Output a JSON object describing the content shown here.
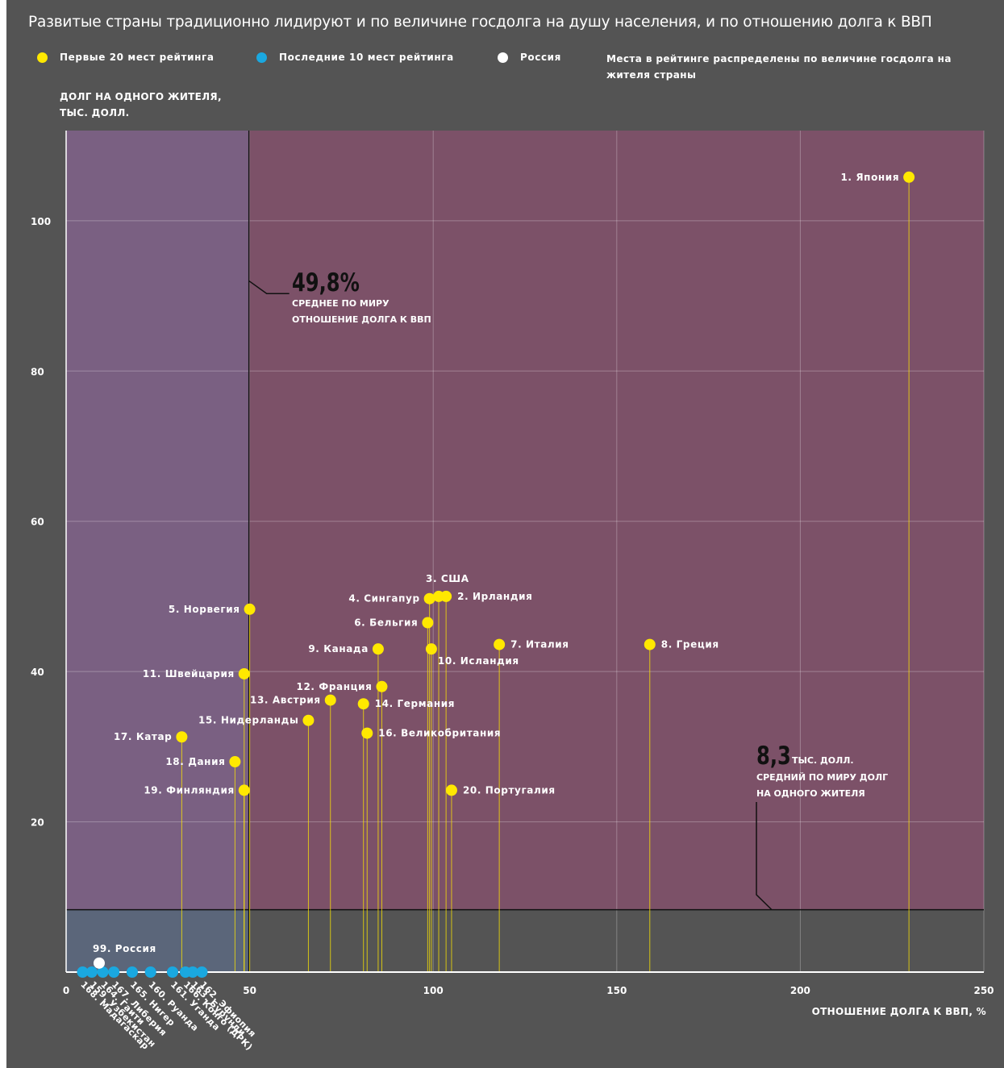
{
  "title": "Развитые страны традиционно лидируют и по величине госдолга на душу населения, и по отношению долга к ВВП",
  "legend": {
    "top20": "Первые 20 мест рейтинга",
    "bottom10": "Последние 10 мест рейтинга",
    "russia": "Россия",
    "note": "Места в рейтинге распределены по величине госдолга на жителя страны"
  },
  "colors": {
    "top20": "#ffe800",
    "bottom10": "#1aa8e0",
    "russia": "#ffffff",
    "frame": "#545454",
    "region_upper_right": "#7c5168",
    "region_upper_left": "#7a6082",
    "region_lower_left": "#5b667a",
    "region_lower_right": "#545454"
  },
  "chart_data": {
    "type": "scatter",
    "xlabel": "ОТНОШЕНИЕ ДОЛГА К ВВП, %",
    "ylabel": "ДОЛГ НА ОДНОГО ЖИТЕЛЯ, ТЫС. ДОЛЛ.",
    "xlim": [
      0,
      250
    ],
    "ylim": [
      0,
      112
    ],
    "xticks": [
      0,
      50,
      100,
      150,
      200,
      250
    ],
    "yticks": [
      20,
      40,
      60,
      80,
      100
    ],
    "grid": true,
    "stems": true,
    "reference_lines": {
      "world_avg_debt_to_gdp": {
        "value": 49.8,
        "label_value": "49,8%",
        "label_text": "СРЕДНЕЕ ПО МИРУ ОТНОШЕНИЕ ДОЛГА К ВВП"
      },
      "world_avg_debt_per_capita": {
        "value": 8.3,
        "label_value": "8,3",
        "label_unit": "ТЫС. ДОЛЛ.",
        "label_text": "СРЕДНИЙ ПО МИРУ ДОЛГ НА ОДНОГО ЖИТЕЛЯ"
      }
    },
    "series": [
      {
        "name": "Первые 20 мест рейтинга",
        "points": [
          {
            "label": "1. Япония",
            "x": 229.6,
            "y": 105.8
          },
          {
            "label": "2. Ирландия",
            "x": 103.5,
            "y": 50.0
          },
          {
            "label": "3. США",
            "x": 101.5,
            "y": 50.0
          },
          {
            "label": "4. Сингапур",
            "x": 99.0,
            "y": 49.7
          },
          {
            "label": "5. Норвегия",
            "x": 50.0,
            "y": 48.3
          },
          {
            "label": "6. Бельгия",
            "x": 98.5,
            "y": 46.5
          },
          {
            "label": "7. Италия",
            "x": 118.0,
            "y": 43.6
          },
          {
            "label": "8. Греция",
            "x": 159.0,
            "y": 43.6
          },
          {
            "label": "9. Канада",
            "x": 85.0,
            "y": 43.0
          },
          {
            "label": "10. Исландия",
            "x": 99.5,
            "y": 43.0
          },
          {
            "label": "11. Швейцария",
            "x": 48.5,
            "y": 39.7
          },
          {
            "label": "12. Франция",
            "x": 86.0,
            "y": 38.0
          },
          {
            "label": "13. Австрия",
            "x": 72.0,
            "y": 36.2
          },
          {
            "label": "14. Германия",
            "x": 81.0,
            "y": 35.7
          },
          {
            "label": "15. Нидерланды",
            "x": 66.0,
            "y": 33.5
          },
          {
            "label": "16. Великобритания",
            "x": 82.0,
            "y": 31.8
          },
          {
            "label": "17. Катар",
            "x": 31.5,
            "y": 31.3
          },
          {
            "label": "18. Дания",
            "x": 46.0,
            "y": 28.0
          },
          {
            "label": "19. Финляндия",
            "x": 48.5,
            "y": 24.2
          },
          {
            "label": "20. Португалия",
            "x": 105.0,
            "y": 24.2
          }
        ]
      },
      {
        "name": "Последние 10 мест рейтинга",
        "points": [
          {
            "label": "168. Мадагаскар",
            "x": 4.5,
            "y": 0.0
          },
          {
            "label": "159. Узбекистан",
            "x": 7.0,
            "y": 0.0
          },
          {
            "label": "164. Гаити",
            "x": 10.0,
            "y": 0.0
          },
          {
            "label": "167. Либерия",
            "x": 13.0,
            "y": 0.0
          },
          {
            "label": "165. Нигер",
            "x": 18.0,
            "y": 0.0
          },
          {
            "label": "160. Руанда",
            "x": 23.0,
            "y": 0.0
          },
          {
            "label": "161. Уганда",
            "x": 29.0,
            "y": 0.0
          },
          {
            "label": "166. Конго (ДРК)",
            "x": 32.5,
            "y": 0.0
          },
          {
            "label": "163. Бурунди",
            "x": 34.5,
            "y": 0.0
          },
          {
            "label": "162. Эфиопия",
            "x": 37.0,
            "y": 0.0
          }
        ]
      },
      {
        "name": "Россия",
        "points": [
          {
            "label": "99. Россия",
            "x": 9.0,
            "y": 1.2
          }
        ]
      }
    ]
  }
}
